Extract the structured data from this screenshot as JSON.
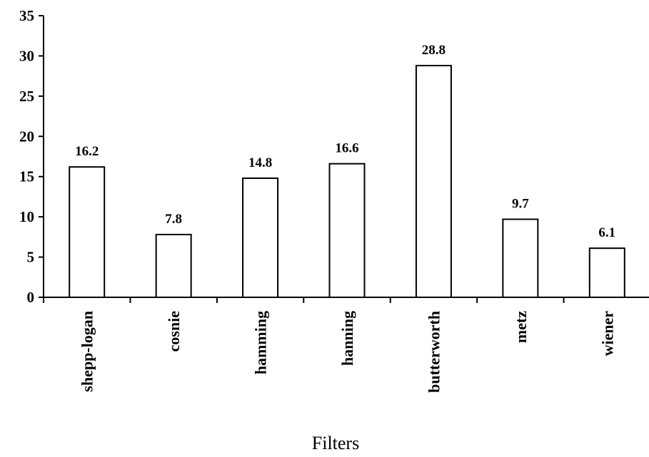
{
  "chart_data": {
    "type": "bar",
    "title": "",
    "xlabel": "Filters",
    "ylabel": "",
    "categories": [
      "shepp-logan",
      "cosnie",
      "hamming",
      "hanning",
      "butterworth",
      "metz",
      "wiener"
    ],
    "values": [
      16.2,
      7.8,
      14.8,
      16.6,
      28.8,
      9.7,
      6.1
    ],
    "data_labels": [
      "16.2",
      "7.8",
      "14.8",
      "16.6",
      "28.8",
      "9.7",
      "6.1"
    ],
    "ylim": [
      0,
      35
    ],
    "yticks": [
      0,
      5,
      10,
      15,
      20,
      25,
      30,
      35
    ],
    "ytick_labels": [
      "0",
      "5",
      "10",
      "15",
      "20",
      "25",
      "30",
      "35"
    ],
    "grid": false,
    "legend": "none",
    "bar_fill": "#ffffff",
    "bar_stroke": "#000000"
  }
}
